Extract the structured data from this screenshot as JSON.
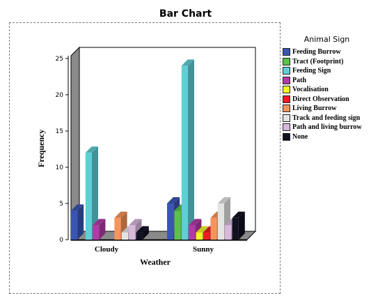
{
  "chart_data": {
    "type": "bar",
    "title": "Bar Chart",
    "xlabel": "Weather",
    "ylabel": "Frequency",
    "ylim": [
      0,
      25
    ],
    "yticks": [
      0,
      5,
      10,
      15,
      20,
      25
    ],
    "categories": [
      "Cloudy",
      "Sunny"
    ],
    "legend_title": "Animal Sign",
    "legend_position": "right",
    "series": [
      {
        "name": "Feeding Burrow",
        "color": "#3a55b4",
        "values": [
          4,
          5
        ]
      },
      {
        "name": "Tract (Footprint)",
        "color": "#5cc148",
        "values": [
          0,
          4
        ]
      },
      {
        "name": "Feeding Sign",
        "color": "#5fcfd6",
        "values": [
          12,
          24
        ]
      },
      {
        "name": "Path",
        "color": "#b23aa6",
        "values": [
          2,
          2
        ]
      },
      {
        "name": "Vocalisation",
        "color": "#f6f42a",
        "values": [
          0,
          1
        ]
      },
      {
        "name": "Direct  Observation",
        "color": "#ee1c24",
        "values": [
          0,
          1
        ]
      },
      {
        "name": "Living Burrow",
        "color": "#f5955c",
        "values": [
          3,
          3
        ]
      },
      {
        "name": "Track and feeding sign",
        "color": "#e4e4e4",
        "values": [
          1,
          5
        ]
      },
      {
        "name": "Path and living burrow",
        "color": "#d9b8dc",
        "values": [
          2,
          2
        ]
      },
      {
        "name": "None",
        "color": "#111122",
        "values": [
          1,
          3
        ]
      }
    ]
  }
}
